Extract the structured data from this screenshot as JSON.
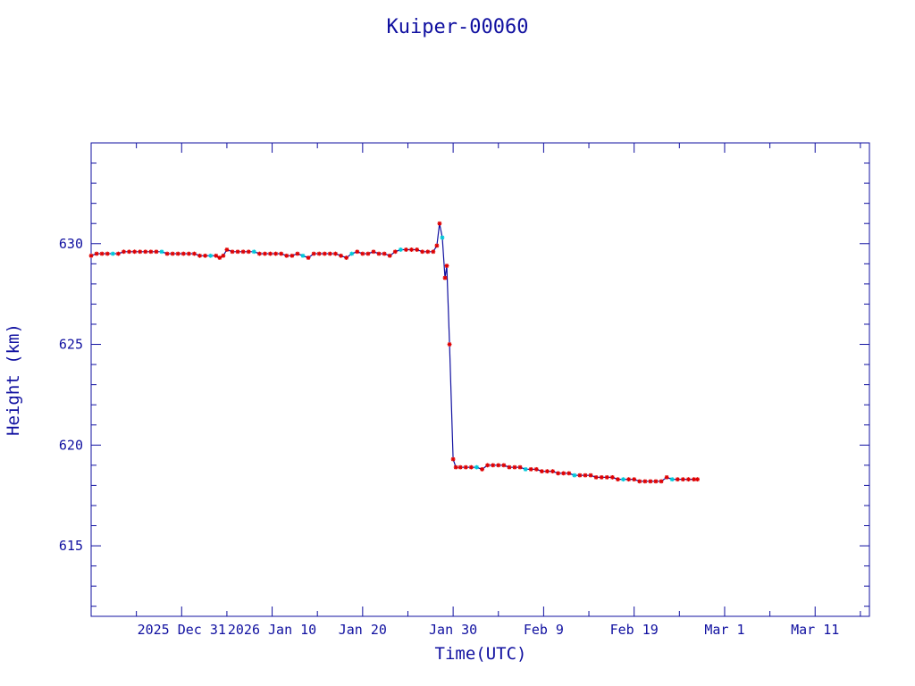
{
  "chart_data": {
    "type": "line",
    "title": "Kuiper-00060",
    "xlabel": "Time(UTC)",
    "ylabel": "Height (km)",
    "x_ticks": [
      {
        "label": "2025 Dec 31",
        "day": 0
      },
      {
        "label": "2026 Jan 10",
        "day": 10
      },
      {
        "label": "Jan 20",
        "day": 20
      },
      {
        "label": "Jan 30",
        "day": 30
      },
      {
        "label": "Feb  9",
        "day": 40
      },
      {
        "label": "Feb 19",
        "day": 50
      },
      {
        "label": "Mar  1",
        "day": 60
      },
      {
        "label": "Mar 11",
        "day": 70
      }
    ],
    "xlim": [
      -10,
      76
    ],
    "y_ticks": [
      615,
      620,
      625,
      630
    ],
    "ylim": [
      611.5,
      635
    ],
    "grid": false,
    "colors": {
      "axes": "#1010a0",
      "line": "#1010a0",
      "marker": "#e00000",
      "marker_alt": "#00c8d8"
    },
    "series": [
      {
        "name": "",
        "points": [
          [
            -10.0,
            629.4
          ],
          [
            -9.4,
            629.5
          ],
          [
            -8.8,
            629.5
          ],
          [
            -8.2,
            629.5
          ],
          [
            -7.6,
            629.5
          ],
          [
            -7.0,
            629.5
          ],
          [
            -6.4,
            629.6
          ],
          [
            -5.8,
            629.6
          ],
          [
            -5.2,
            629.6
          ],
          [
            -4.6,
            629.6
          ],
          [
            -4.0,
            629.6
          ],
          [
            -3.4,
            629.6
          ],
          [
            -2.8,
            629.6
          ],
          [
            -2.2,
            629.6
          ],
          [
            -1.6,
            629.5
          ],
          [
            -1.0,
            629.5
          ],
          [
            -0.4,
            629.5
          ],
          [
            0.2,
            629.5
          ],
          [
            0.8,
            629.5
          ],
          [
            1.4,
            629.5
          ],
          [
            2.0,
            629.4
          ],
          [
            2.6,
            629.4
          ],
          [
            3.2,
            629.4
          ],
          [
            3.8,
            629.4
          ],
          [
            4.2,
            629.3
          ],
          [
            4.6,
            629.4
          ],
          [
            5.0,
            629.7
          ],
          [
            5.6,
            629.6
          ],
          [
            6.2,
            629.6
          ],
          [
            6.8,
            629.6
          ],
          [
            7.4,
            629.6
          ],
          [
            8.0,
            629.6
          ],
          [
            8.6,
            629.5
          ],
          [
            9.2,
            629.5
          ],
          [
            9.8,
            629.5
          ],
          [
            10.4,
            629.5
          ],
          [
            11.0,
            629.5
          ],
          [
            11.6,
            629.4
          ],
          [
            12.2,
            629.4
          ],
          [
            12.8,
            629.5
          ],
          [
            13.4,
            629.4
          ],
          [
            14.0,
            629.3
          ],
          [
            14.6,
            629.5
          ],
          [
            15.2,
            629.5
          ],
          [
            15.8,
            629.5
          ],
          [
            16.4,
            629.5
          ],
          [
            17.0,
            629.5
          ],
          [
            17.6,
            629.4
          ],
          [
            18.2,
            629.3
          ],
          [
            18.8,
            629.5
          ],
          [
            19.4,
            629.6
          ],
          [
            20.0,
            629.5
          ],
          [
            20.6,
            629.5
          ],
          [
            21.2,
            629.6
          ],
          [
            21.8,
            629.5
          ],
          [
            22.4,
            629.5
          ],
          [
            23.0,
            629.4
          ],
          [
            23.6,
            629.6
          ],
          [
            24.2,
            629.7
          ],
          [
            24.8,
            629.7
          ],
          [
            25.4,
            629.7
          ],
          [
            26.0,
            629.7
          ],
          [
            26.6,
            629.6
          ],
          [
            27.2,
            629.6
          ],
          [
            27.8,
            629.6
          ],
          [
            28.2,
            629.9
          ],
          [
            28.5,
            631.0
          ],
          [
            28.8,
            630.3
          ],
          [
            29.1,
            628.3
          ],
          [
            29.3,
            628.9
          ],
          [
            29.6,
            625.0
          ],
          [
            30.0,
            619.3
          ],
          [
            30.3,
            618.9
          ],
          [
            30.8,
            618.9
          ],
          [
            31.4,
            618.9
          ],
          [
            32.0,
            618.9
          ],
          [
            32.6,
            618.9
          ],
          [
            33.2,
            618.8
          ],
          [
            33.8,
            619.0
          ],
          [
            34.4,
            619.0
          ],
          [
            35.0,
            619.0
          ],
          [
            35.6,
            619.0
          ],
          [
            36.2,
            618.9
          ],
          [
            36.8,
            618.9
          ],
          [
            37.4,
            618.9
          ],
          [
            38.0,
            618.8
          ],
          [
            38.6,
            618.8
          ],
          [
            39.2,
            618.8
          ],
          [
            39.8,
            618.7
          ],
          [
            40.4,
            618.7
          ],
          [
            41.0,
            618.7
          ],
          [
            41.6,
            618.6
          ],
          [
            42.2,
            618.6
          ],
          [
            42.8,
            618.6
          ],
          [
            43.4,
            618.5
          ],
          [
            44.0,
            618.5
          ],
          [
            44.6,
            618.5
          ],
          [
            45.2,
            618.5
          ],
          [
            45.8,
            618.4
          ],
          [
            46.4,
            618.4
          ],
          [
            47.0,
            618.4
          ],
          [
            47.6,
            618.4
          ],
          [
            48.2,
            618.3
          ],
          [
            48.8,
            618.3
          ],
          [
            49.4,
            618.3
          ],
          [
            50.0,
            618.3
          ],
          [
            50.6,
            618.2
          ],
          [
            51.2,
            618.2
          ],
          [
            51.8,
            618.2
          ],
          [
            52.4,
            618.2
          ],
          [
            53.0,
            618.2
          ],
          [
            53.6,
            618.4
          ],
          [
            54.2,
            618.3
          ],
          [
            54.8,
            618.3
          ],
          [
            55.4,
            618.3
          ],
          [
            56.0,
            618.3
          ],
          [
            56.6,
            618.3
          ],
          [
            57.0,
            618.3
          ]
        ]
      }
    ]
  }
}
